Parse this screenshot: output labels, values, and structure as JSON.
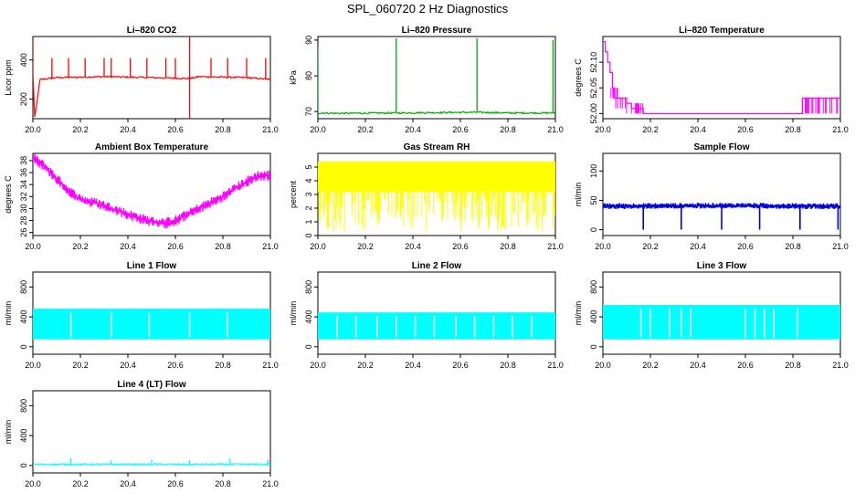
{
  "page": {
    "title": "SPL_060720  2 Hz Diagnostics"
  },
  "chart_data": [
    {
      "type": "line",
      "title": "Li–820 CO2",
      "xlabel": "",
      "ylabel": "Licor ppm",
      "color": "#ff0000",
      "xlim": [
        0.0,
        1.0
      ],
      "ylim": [
        100,
        520
      ],
      "xticks": [
        0.0,
        0.2,
        0.4,
        0.6,
        0.8,
        1.0
      ],
      "xticklabels": [
        "20.0",
        "20.2",
        "20.4",
        "20.6",
        "20.8",
        "21.0"
      ],
      "yticks": [
        200,
        400
      ],
      "yticklabels": [
        "200",
        "400"
      ],
      "pattern": "spiky",
      "series": [
        {
          "name": "CO2",
          "x": [
            0.0,
            0.008,
            0.03,
            0.1,
            0.3,
            0.5,
            0.66,
            0.7,
            0.9,
            1.0
          ],
          "values": [
            330,
            100,
            300,
            310,
            315,
            310,
            305,
            315,
            310,
            300
          ]
        }
      ],
      "spikes": [
        {
          "x": 0.0,
          "y": 500
        },
        {
          "x": 0.08,
          "y": 410
        },
        {
          "x": 0.15,
          "y": 410
        },
        {
          "x": 0.22,
          "y": 410
        },
        {
          "x": 0.3,
          "y": 410
        },
        {
          "x": 0.33,
          "y": 410
        },
        {
          "x": 0.41,
          "y": 410
        },
        {
          "x": 0.48,
          "y": 410
        },
        {
          "x": 0.56,
          "y": 410
        },
        {
          "x": 0.6,
          "y": 410
        },
        {
          "x": 0.66,
          "y": 520
        },
        {
          "x": 0.66,
          "y": 100
        },
        {
          "x": 0.75,
          "y": 410
        },
        {
          "x": 0.82,
          "y": 410
        },
        {
          "x": 0.9,
          "y": 410
        },
        {
          "x": 0.98,
          "y": 410
        }
      ]
    },
    {
      "type": "line",
      "title": "Li–820 Pressure",
      "xlabel": "",
      "ylabel": "kPa",
      "color": "#00aa00",
      "xlim": [
        0.0,
        1.0
      ],
      "ylim": [
        68,
        91
      ],
      "xticks": [
        0.0,
        0.2,
        0.4,
        0.6,
        0.8,
        1.0
      ],
      "xticklabels": [
        "20.0",
        "20.2",
        "20.4",
        "20.6",
        "20.8",
        "21.0"
      ],
      "yticks": [
        70,
        80,
        90
      ],
      "yticklabels": [
        "70",
        "80",
        "90"
      ],
      "pattern": "spiky",
      "series": [
        {
          "name": "Pressure",
          "x": [
            0.0,
            0.1,
            0.33,
            0.5,
            0.67,
            0.8,
            1.0
          ],
          "values": [
            69.6,
            69.5,
            69.6,
            69.7,
            69.8,
            69.6,
            69.6
          ]
        }
      ],
      "spikes": [
        {
          "x": 0.0,
          "y": 88
        },
        {
          "x": 0.33,
          "y": 90.5
        },
        {
          "x": 0.67,
          "y": 90.5
        },
        {
          "x": 0.99,
          "y": 90
        }
      ]
    },
    {
      "type": "line",
      "title": "Li–820 Temperature",
      "xlabel": "",
      "ylabel": "degrees C",
      "color": "#ff00ff",
      "xlim": [
        0.0,
        1.0
      ],
      "ylim": [
        51.99,
        52.15
      ],
      "xticks": [
        0.0,
        0.2,
        0.4,
        0.6,
        0.8,
        1.0
      ],
      "xticklabels": [
        "20.0",
        "20.2",
        "20.4",
        "20.6",
        "20.8",
        "21.0"
      ],
      "yticks": [
        52.0,
        52.05,
        52.1
      ],
      "yticklabels": [
        "52.00",
        "52.05",
        "52.10"
      ],
      "pattern": "step",
      "series": [
        {
          "name": "Temperature",
          "x": [
            0.0,
            0.01,
            0.02,
            0.03,
            0.04,
            0.05,
            0.07,
            0.1,
            0.12,
            0.17,
            0.8,
            0.84,
            1.0
          ],
          "values": [
            52.14,
            52.12,
            52.1,
            52.08,
            52.05,
            52.03,
            52.03,
            52.02,
            52.01,
            52.0,
            52.0,
            52.03,
            52.03
          ]
        }
      ],
      "spikes": []
    },
    {
      "type": "line",
      "title": "Ambient Box Temperature",
      "xlabel": "",
      "ylabel": "degrees C",
      "color": "#ff00ff",
      "xlim": [
        0.0,
        1.0
      ],
      "ylim": [
        25.5,
        39.2
      ],
      "xticks": [
        0.0,
        0.2,
        0.4,
        0.6,
        0.8,
        1.0
      ],
      "xticklabels": [
        "20.0",
        "20.2",
        "20.4",
        "20.6",
        "20.8",
        "21.0"
      ],
      "yticks": [
        26,
        28,
        30,
        32,
        34,
        36,
        38
      ],
      "yticklabels": [
        "26",
        "28",
        "30",
        "32",
        "34",
        "36",
        "38"
      ],
      "pattern": "noisy",
      "series": [
        {
          "name": "Ambient",
          "x": [
            0.0,
            0.05,
            0.1,
            0.15,
            0.2,
            0.3,
            0.4,
            0.5,
            0.55,
            0.6,
            0.7,
            0.8,
            0.9,
            0.95,
            1.0
          ],
          "values": [
            38.5,
            37,
            35,
            33,
            31.5,
            30.5,
            29,
            27.8,
            27.5,
            28,
            30,
            32,
            34.5,
            35.5,
            35.5
          ]
        }
      ],
      "spikes": []
    },
    {
      "type": "area",
      "title": "Gas Stream RH",
      "xlabel": "",
      "ylabel": "percent",
      "color": "#ffff00",
      "xlim": [
        0.0,
        1.0
      ],
      "ylim": [
        0,
        6
      ],
      "xticks": [
        0.0,
        0.2,
        0.4,
        0.6,
        0.8,
        1.0
      ],
      "xticklabels": [
        "20.0",
        "20.2",
        "20.4",
        "20.6",
        "20.8",
        "21.0"
      ],
      "yticks": [
        0,
        1,
        2,
        3,
        4,
        5
      ],
      "yticklabels": [
        "0",
        "1",
        "2",
        "3",
        "4",
        "5"
      ],
      "pattern": "band",
      "band": {
        "low": 3.2,
        "high": 5.4,
        "dip_low": 0.3
      },
      "series": [
        {
          "name": "RH",
          "x": [
            0.0,
            1.0
          ],
          "values": [
            5.3,
            5.3
          ]
        }
      ],
      "spikes": []
    },
    {
      "type": "line",
      "title": "Sample Flow",
      "xlabel": "",
      "ylabel": "ml/min",
      "color": "#0000dd",
      "xlim": [
        0.0,
        1.0
      ],
      "ylim": [
        -10,
        130
      ],
      "xticks": [
        0.0,
        0.2,
        0.4,
        0.6,
        0.8,
        1.0
      ],
      "xticklabels": [
        "20.0",
        "20.2",
        "20.4",
        "20.6",
        "20.8",
        "21.0"
      ],
      "yticks": [
        0,
        50,
        100
      ],
      "yticklabels": [
        "0",
        "50",
        "100"
      ],
      "pattern": "noisy-dips",
      "series": [
        {
          "name": "Sample",
          "x": [
            0.0,
            0.5,
            1.0
          ],
          "values": [
            40,
            41,
            40
          ]
        }
      ],
      "dips": [
        {
          "x": 0.17,
          "y": 0
        },
        {
          "x": 0.33,
          "y": 0
        },
        {
          "x": 0.5,
          "y": 0
        },
        {
          "x": 0.66,
          "y": 0
        },
        {
          "x": 0.83,
          "y": 0
        },
        {
          "x": 0.99,
          "y": 0
        }
      ],
      "spikes": []
    },
    {
      "type": "area",
      "title": "Line 1 Flow",
      "xlabel": "",
      "ylabel": "ml/min",
      "color": "#00ffff",
      "xlim": [
        0.0,
        1.0
      ],
      "ylim": [
        -100,
        1000
      ],
      "xticks": [
        0.0,
        0.2,
        0.4,
        0.6,
        0.8,
        1.0
      ],
      "xticklabels": [
        "20.0",
        "20.2",
        "20.4",
        "20.6",
        "20.8",
        "21.0"
      ],
      "yticks": [
        0,
        400,
        800
      ],
      "yticklabels": [
        "0",
        "400",
        "800"
      ],
      "pattern": "blocks",
      "band": {
        "low": 100,
        "high": 510
      },
      "gaps": [
        0.16,
        0.33,
        0.49,
        0.66,
        0.82
      ],
      "series": [
        {
          "name": "Line1",
          "x": [
            0.0,
            1.0
          ],
          "values": [
            510,
            510
          ]
        }
      ],
      "spikes": []
    },
    {
      "type": "area",
      "title": "Line 2 Flow",
      "xlabel": "",
      "ylabel": "ml/min",
      "color": "#00ffff",
      "xlim": [
        0.0,
        1.0
      ],
      "ylim": [
        -100,
        1000
      ],
      "xticks": [
        0.0,
        0.2,
        0.4,
        0.6,
        0.8,
        1.0
      ],
      "xticklabels": [
        "20.0",
        "20.2",
        "20.4",
        "20.6",
        "20.8",
        "21.0"
      ],
      "yticks": [
        0,
        400,
        800
      ],
      "yticklabels": [
        "0",
        "400",
        "800"
      ],
      "pattern": "blocks",
      "band": {
        "low": 100,
        "high": 460
      },
      "gaps": [
        0.08,
        0.16,
        0.25,
        0.33,
        0.41,
        0.49,
        0.58,
        0.66,
        0.74,
        0.82,
        0.9
      ],
      "series": [
        {
          "name": "Line2",
          "x": [
            0.0,
            1.0
          ],
          "values": [
            460,
            460
          ]
        }
      ],
      "spikes": []
    },
    {
      "type": "area",
      "title": "Line 3 Flow",
      "xlabel": "",
      "ylabel": "ml/min",
      "color": "#00ffff",
      "xlim": [
        0.0,
        1.0
      ],
      "ylim": [
        -100,
        1000
      ],
      "xticks": [
        0.0,
        0.2,
        0.4,
        0.6,
        0.8,
        1.0
      ],
      "xticklabels": [
        "20.0",
        "20.2",
        "20.4",
        "20.6",
        "20.8",
        "21.0"
      ],
      "yticks": [
        0,
        400,
        800
      ],
      "yticklabels": [
        "0",
        "400",
        "800"
      ],
      "pattern": "blocks",
      "band": {
        "low": 100,
        "high": 560
      },
      "gaps": [
        0.16,
        0.2,
        0.28,
        0.33,
        0.37,
        0.6,
        0.64,
        0.68,
        0.72,
        0.82
      ],
      "series": [
        {
          "name": "Line3",
          "x": [
            0.0,
            1.0
          ],
          "values": [
            560,
            560
          ]
        }
      ],
      "spikes": []
    },
    {
      "type": "line",
      "title": "Line 4 (LT) Flow",
      "xlabel": "",
      "ylabel": "ml/min",
      "color": "#00ffff",
      "xlim": [
        0.0,
        1.0
      ],
      "ylim": [
        -100,
        1000
      ],
      "xticks": [
        0.0,
        0.2,
        0.4,
        0.6,
        0.8,
        1.0
      ],
      "xticklabels": [
        "20.0",
        "20.2",
        "20.4",
        "20.6",
        "20.8",
        "21.0"
      ],
      "yticks": [
        0,
        400,
        800
      ],
      "yticklabels": [
        "0",
        "400",
        "800"
      ],
      "pattern": "flat",
      "series": [
        {
          "name": "Line4",
          "x": [
            0.0,
            1.0
          ],
          "values": [
            15,
            15
          ]
        }
      ],
      "spikes": [
        {
          "x": 0.16,
          "y": 100
        },
        {
          "x": 0.33,
          "y": 70
        },
        {
          "x": 0.5,
          "y": 80
        },
        {
          "x": 0.66,
          "y": 70
        },
        {
          "x": 0.83,
          "y": 90
        },
        {
          "x": 0.99,
          "y": 80
        }
      ]
    }
  ]
}
